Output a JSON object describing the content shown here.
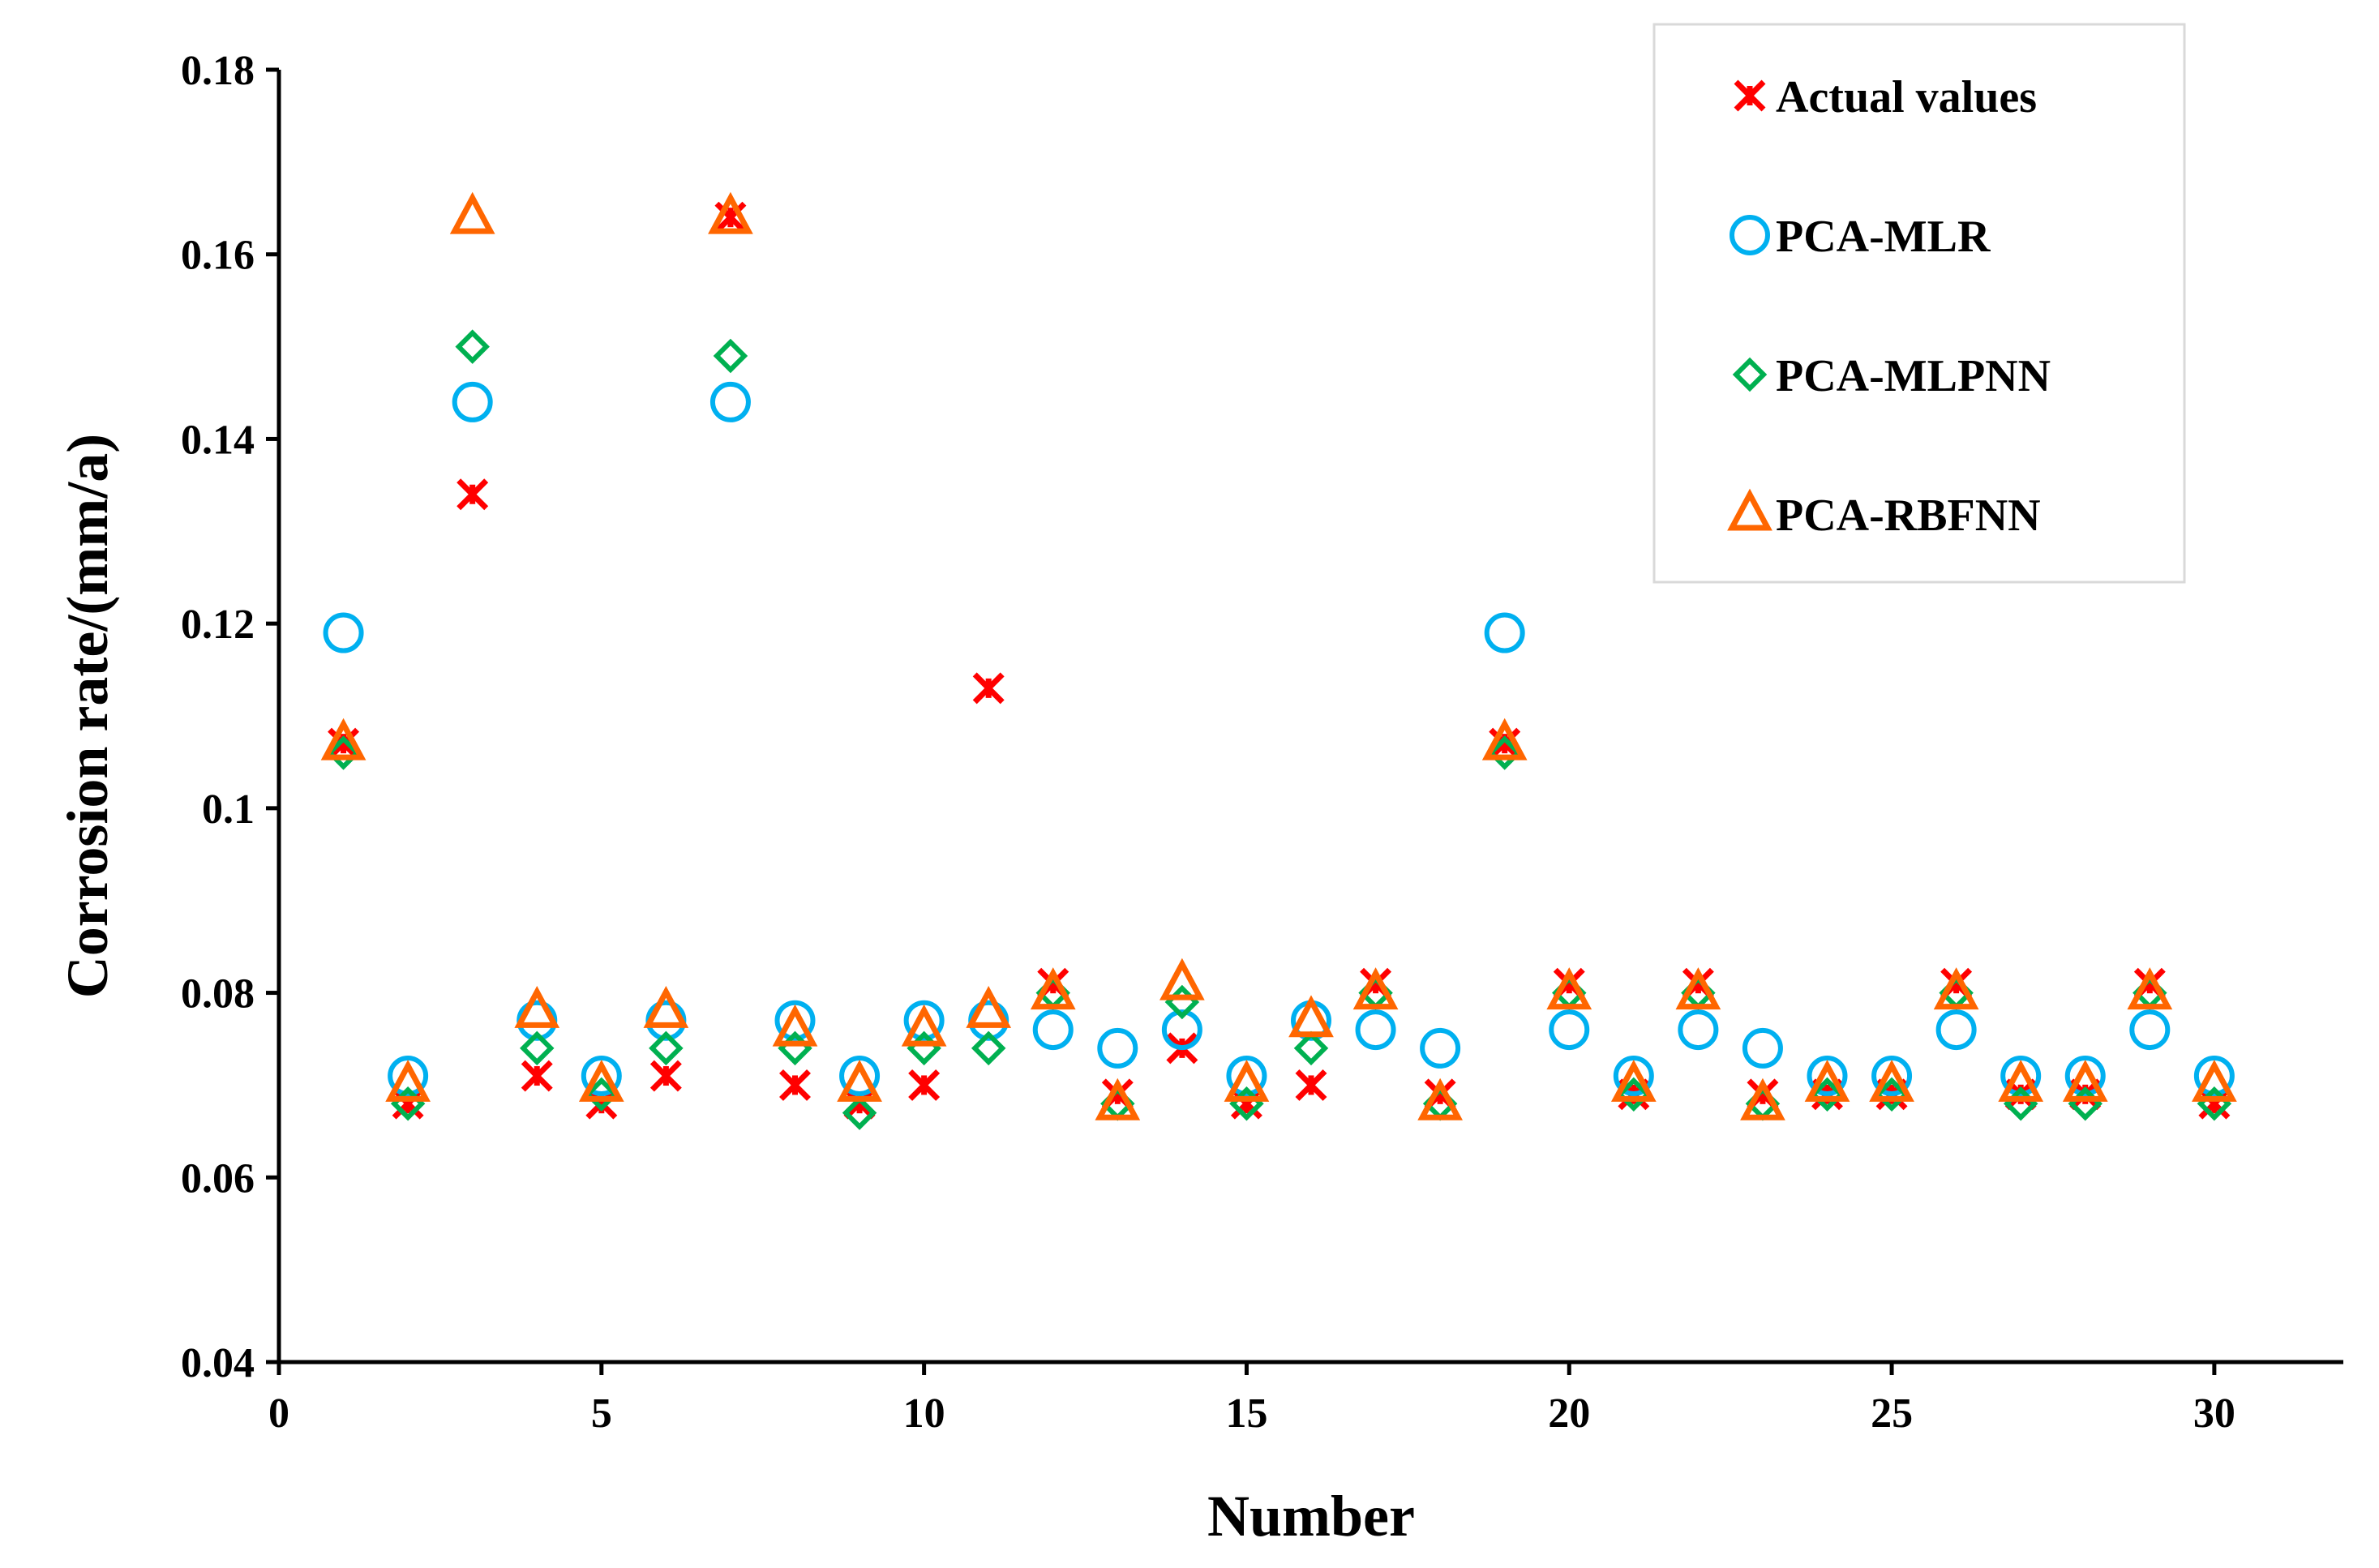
{
  "chart_data": {
    "type": "scatter",
    "xlabel": "Number",
    "ylabel": "Corrosion rate/(mm/a)",
    "xlim": [
      0,
      32
    ],
    "ylim": [
      0.04,
      0.18
    ],
    "x_ticks": [
      0,
      5,
      10,
      15,
      20,
      25,
      30
    ],
    "y_ticks": [
      0.04,
      0.06,
      0.08,
      0.1,
      0.12,
      0.14,
      0.16,
      0.18
    ],
    "x_tick_labels": [
      "0",
      "5",
      "10",
      "15",
      "20",
      "25",
      "30"
    ],
    "y_tick_labels": [
      "0.04",
      "0.06",
      "0.08",
      "0.1",
      "0.12",
      "0.14",
      "0.16",
      "0.18"
    ],
    "grid": false,
    "legend_position": "top-right",
    "x": [
      1,
      2,
      3,
      4,
      5,
      6,
      7,
      8,
      9,
      10,
      11,
      12,
      13,
      14,
      15,
      16,
      17,
      18,
      19,
      20,
      21,
      22,
      23,
      24,
      25,
      26,
      27,
      28,
      29,
      30
    ],
    "series": [
      {
        "name": "Actual values",
        "marker": "asterisk",
        "color": "#ff0000",
        "values": [
          0.107,
          0.068,
          0.134,
          0.071,
          0.068,
          0.071,
          0.164,
          0.07,
          0.068,
          0.07,
          0.113,
          0.081,
          0.069,
          0.074,
          0.068,
          0.07,
          0.081,
          0.069,
          0.107,
          0.081,
          0.069,
          0.081,
          0.069,
          0.069,
          0.069,
          0.081,
          0.069,
          0.069,
          0.081,
          0.068
        ]
      },
      {
        "name": "PCA-MLR",
        "marker": "circle",
        "color": "#00b0f0",
        "values": [
          0.119,
          0.071,
          0.144,
          0.077,
          0.071,
          0.077,
          0.144,
          0.077,
          0.071,
          0.077,
          0.077,
          0.076,
          0.074,
          0.076,
          0.071,
          0.077,
          0.076,
          0.074,
          0.119,
          0.076,
          0.071,
          0.076,
          0.074,
          0.071,
          0.071,
          0.076,
          0.071,
          0.071,
          0.076,
          0.071
        ]
      },
      {
        "name": "PCA-MLPNN",
        "marker": "diamond",
        "color": "#00b050",
        "values": [
          0.106,
          0.068,
          0.15,
          0.074,
          0.069,
          0.074,
          0.149,
          0.074,
          0.067,
          0.074,
          0.074,
          0.08,
          0.068,
          0.079,
          0.068,
          0.074,
          0.08,
          0.068,
          0.106,
          0.08,
          0.069,
          0.08,
          0.068,
          0.069,
          0.069,
          0.08,
          0.068,
          0.068,
          0.08,
          0.068
        ]
      },
      {
        "name": "PCA-RBFNN",
        "marker": "triangle",
        "color": "#ff6600",
        "values": [
          0.107,
          0.07,
          0.164,
          0.078,
          0.07,
          0.078,
          0.164,
          0.076,
          0.07,
          0.076,
          0.078,
          0.08,
          0.068,
          0.081,
          0.07,
          0.077,
          0.08,
          0.068,
          0.107,
          0.08,
          0.07,
          0.08,
          0.068,
          0.07,
          0.07,
          0.08,
          0.07,
          0.07,
          0.08,
          0.07
        ]
      }
    ]
  }
}
